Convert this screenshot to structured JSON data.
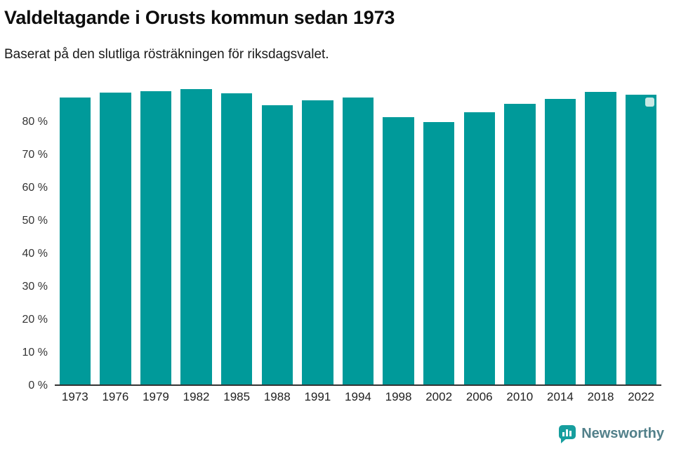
{
  "title": "Valdeltagande i Orusts kommun sedan 1973",
  "subtitle": "Baserat på den slutliga rösträkningen för riksdagsvalet.",
  "brand": {
    "name": "Newsworthy",
    "icon_color": "#169e9e",
    "text_color": "#52808a"
  },
  "chart_data": {
    "type": "bar",
    "title": "Valdeltagande i Orusts kommun sedan 1973",
    "subtitle": "Baserat på den slutliga rösträkningen för riksdagsvalet.",
    "categories": [
      "1973",
      "1976",
      "1979",
      "1982",
      "1985",
      "1988",
      "1991",
      "1994",
      "1998",
      "2002",
      "2006",
      "2010",
      "2014",
      "2018",
      "2022"
    ],
    "values": [
      87.3,
      88.9,
      89.3,
      89.9,
      88.6,
      85.0,
      86.5,
      87.3,
      81.3,
      79.9,
      82.9,
      85.4,
      86.9,
      89.0,
      88.2
    ],
    "yticks": [
      {
        "value": 0,
        "label": "0 %"
      },
      {
        "value": 10,
        "label": "10 %"
      },
      {
        "value": 20,
        "label": "20 %"
      },
      {
        "value": 30,
        "label": "30 %"
      },
      {
        "value": 40,
        "label": "40 %"
      },
      {
        "value": 50,
        "label": "50 %"
      },
      {
        "value": 60,
        "label": "60 %"
      },
      {
        "value": 70,
        "label": "70 %"
      },
      {
        "value": 80,
        "label": "80 %"
      }
    ],
    "ylim": [
      0,
      91
    ],
    "xlabel": "",
    "ylabel": "",
    "grid": false,
    "legend": false,
    "bar_color": "#009a9a",
    "highlight": {
      "category": "2022",
      "marker_color": "#c9e8e4"
    }
  }
}
